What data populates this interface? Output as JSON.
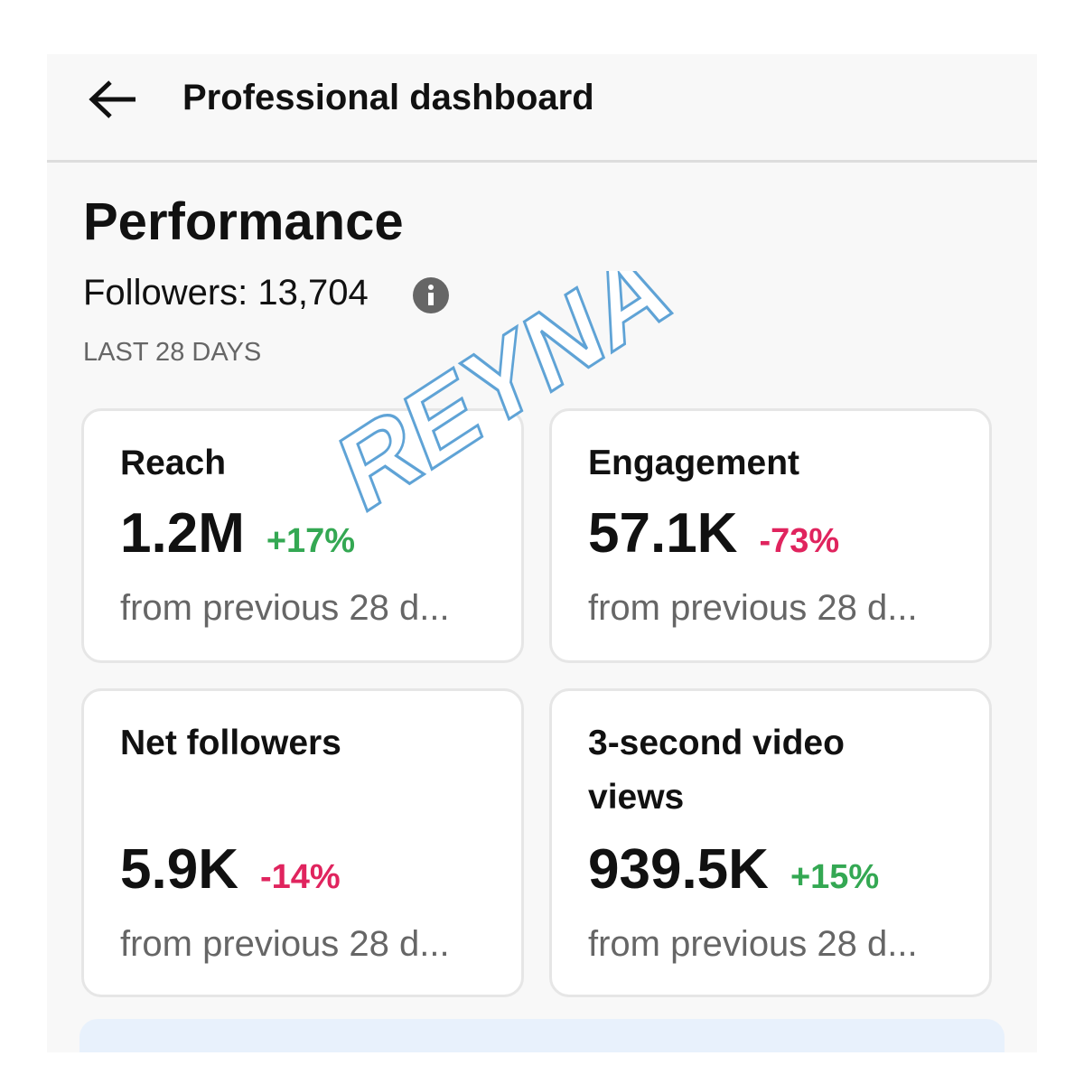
{
  "header": {
    "title": "Professional dashboard"
  },
  "performance": {
    "title": "Performance",
    "followers": "Followers: 13,704",
    "period": "LAST 28 DAYS"
  },
  "cards": [
    {
      "title": "Reach",
      "value": "1.2M",
      "change": "+17%",
      "note": "from previous 28 d..."
    },
    {
      "title": "Engagement",
      "value": "57.1K",
      "change": "-73%",
      "note": "from previous 28 d..."
    },
    {
      "title": "Net followers",
      "value": "5.9K",
      "change": "-14%",
      "note": "from previous 28 d..."
    },
    {
      "title": "3-second video views",
      "value": "939.5K",
      "change": "+15%",
      "note": "from previous 28 d..."
    }
  ],
  "watermark": "REYNA"
}
